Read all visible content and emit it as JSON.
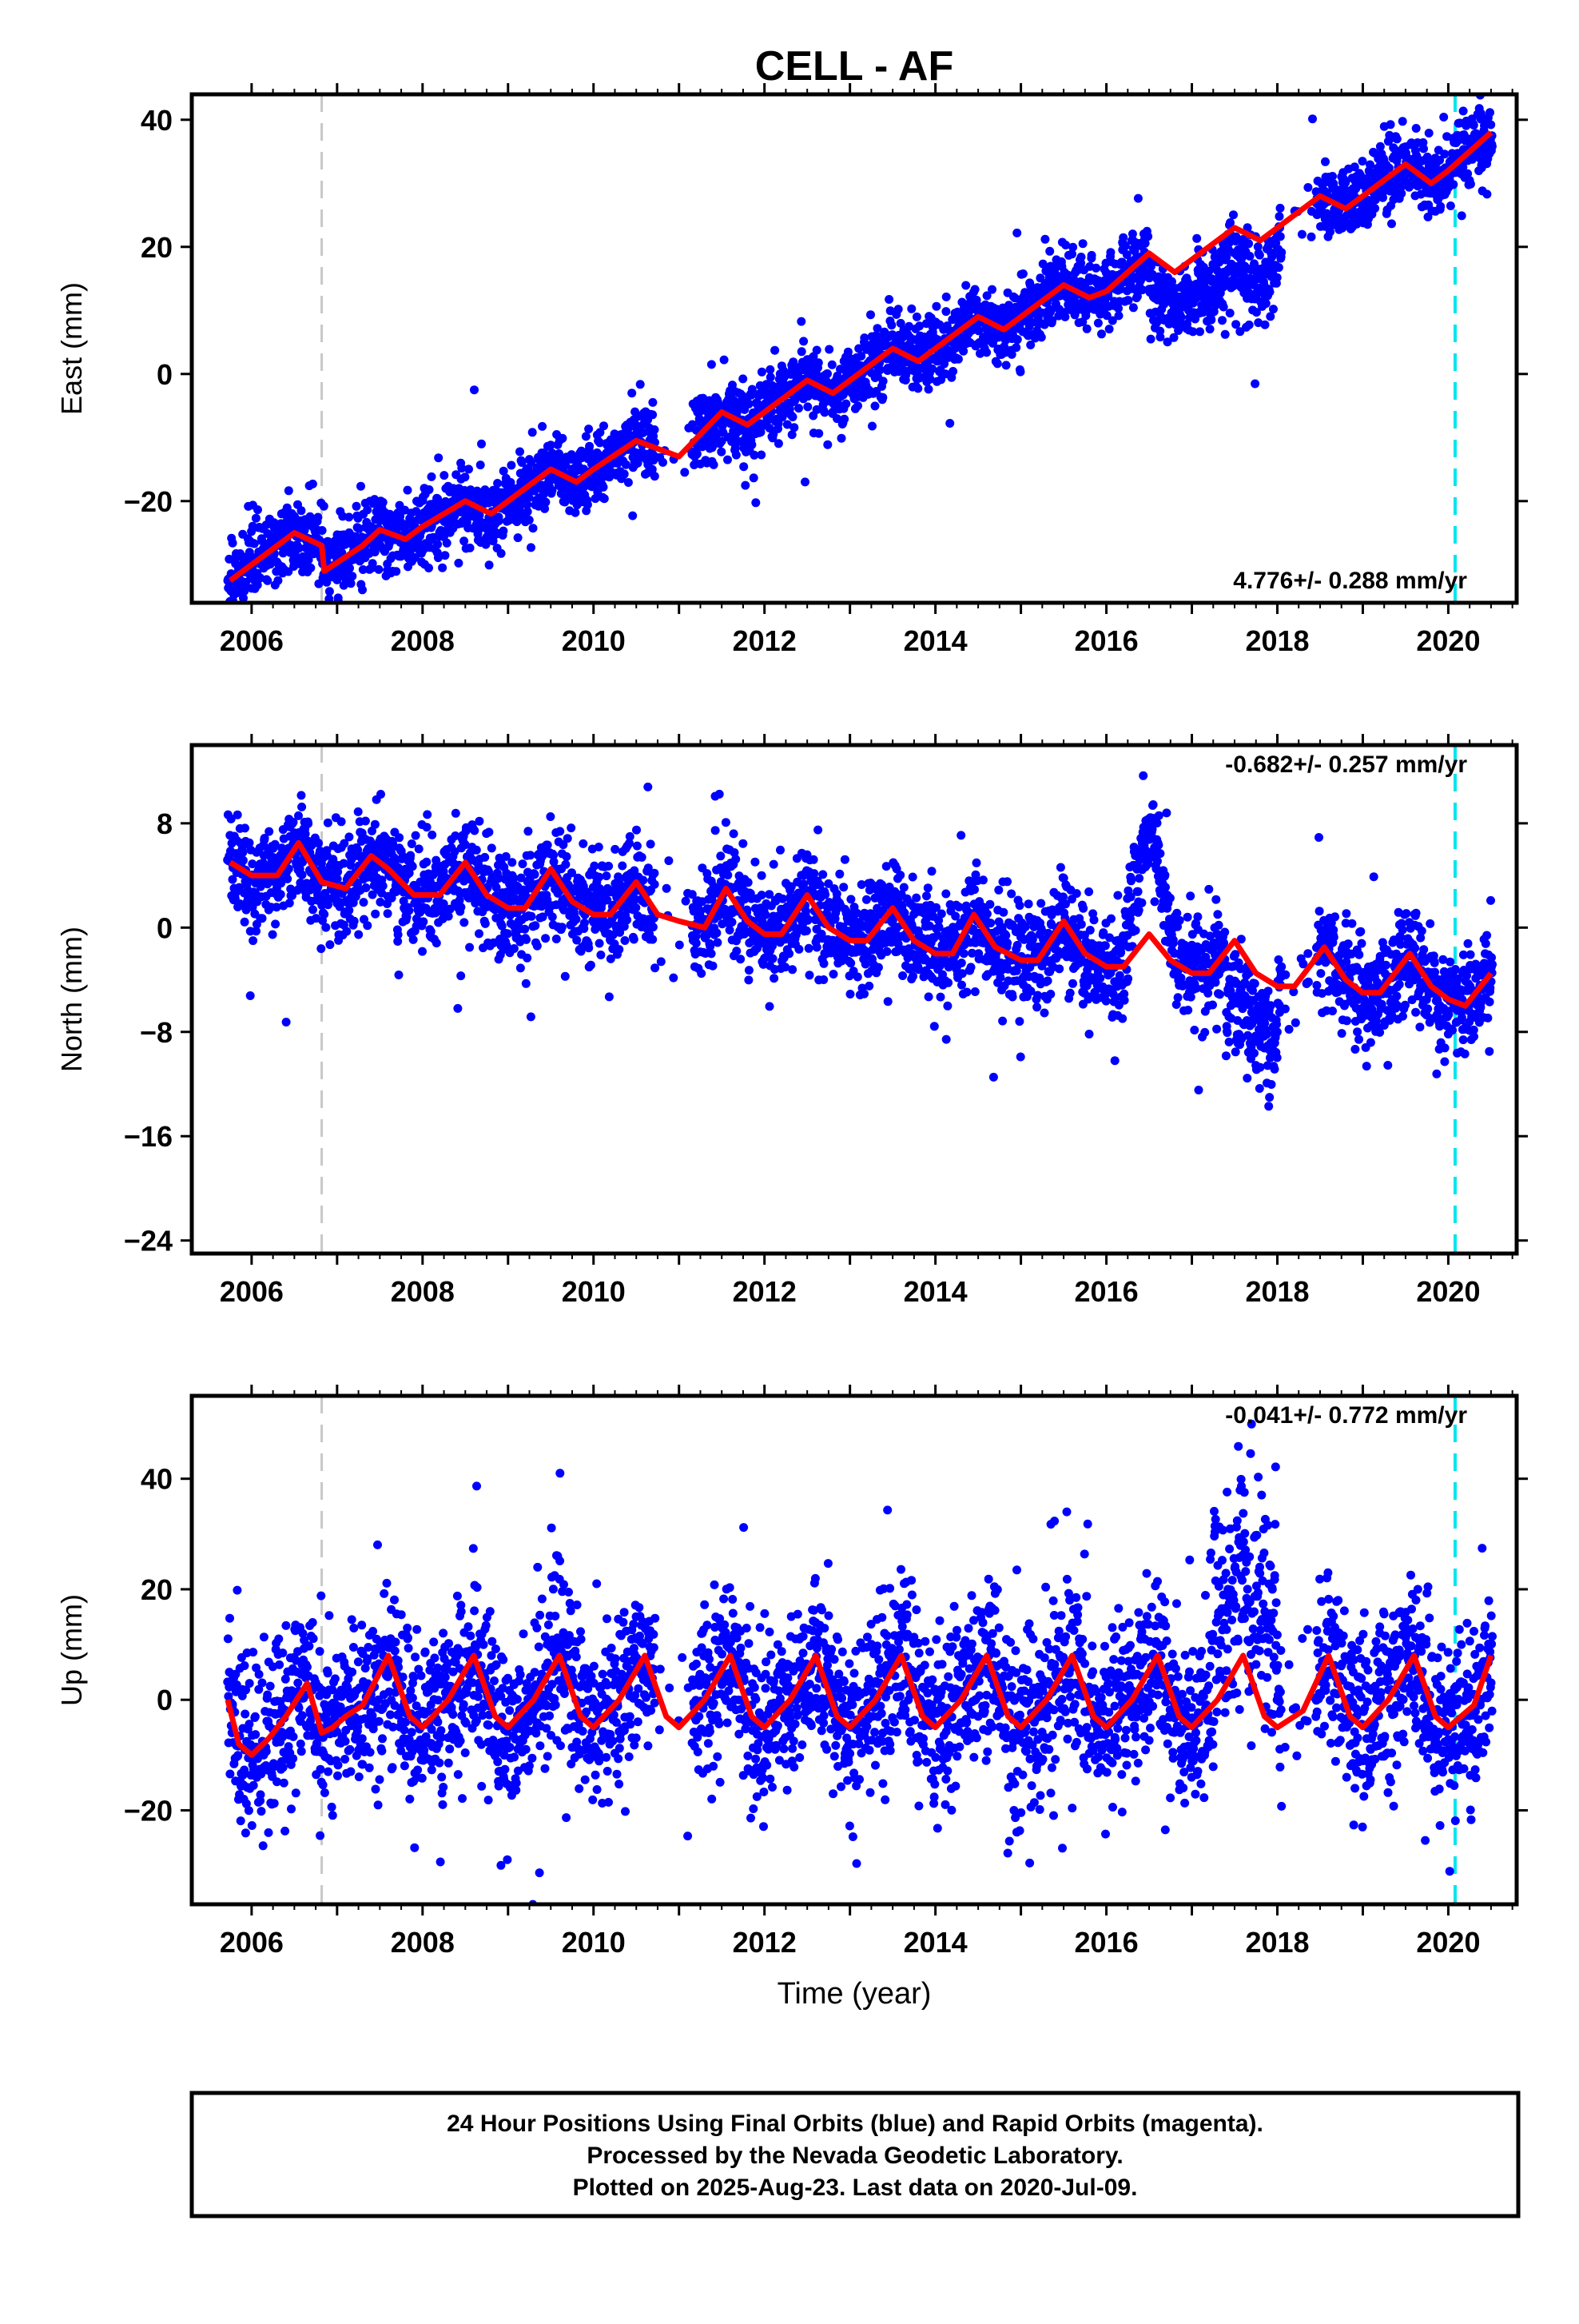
{
  "chart_title": "CELL - AF",
  "x_axis_label": "Time (year)",
  "footer": {
    "line1": "24 Hour Positions Using Final Orbits (blue) and Rapid Orbits (magenta).",
    "line2": "Processed by the Nevada Geodetic Laboratory.",
    "line3": "Plotted on 2025-Aug-23. Last data on 2020-Jul-09."
  },
  "colors": {
    "final_orbits": "#0000ff",
    "rapid_orbits": "#ff00ff",
    "model_fit": "#ff0000",
    "antenna_change": "#c8c8c8",
    "other_event": "#00e5ee"
  },
  "chart_data": [
    {
      "type": "scatter",
      "component": "East",
      "ylabel": "East (mm)",
      "rate_label": "4.776+/- 0.288 mm/yr",
      "xlim": [
        2005.3,
        2020.8
      ],
      "ylim": [
        -36,
        44
      ],
      "yticks": [
        -20,
        0,
        20,
        40
      ],
      "xticks": [
        2006,
        2008,
        2010,
        2012,
        2014,
        2016,
        2018,
        2020
      ],
      "grid": false,
      "vertical_lines": [
        {
          "x": 2006.82,
          "style": "dashed",
          "color": "gray"
        },
        {
          "x": 2020.08,
          "style": "dashed",
          "color": "cyan"
        }
      ],
      "data_range": [
        2005.72,
        2020.52
      ],
      "fit_line": {
        "x": [
          2005.75,
          2006.2,
          2006.5,
          2006.82,
          2006.85,
          2007.3,
          2007.5,
          2007.8,
          2008.0,
          2008.5,
          2008.8,
          2009.0,
          2009.5,
          2009.8,
          2010.0,
          2010.5,
          2011.0,
          2011.5,
          2011.8,
          2012.0,
          2012.5,
          2012.8,
          2013.0,
          2013.5,
          2013.8,
          2014.0,
          2014.5,
          2014.8,
          2015.0,
          2015.5,
          2015.8,
          2016.0,
          2016.5,
          2016.8,
          2017.0,
          2017.5,
          2017.8,
          2018.0,
          2018.5,
          2018.8,
          2019.0,
          2019.5,
          2019.8,
          2020.0,
          2020.5
        ],
        "y": [
          -32.5,
          -28,
          -25,
          -27,
          -31,
          -27,
          -24.5,
          -26,
          -24,
          -20,
          -22,
          -20,
          -15,
          -17,
          -15,
          -10.5,
          -13,
          -6,
          -8,
          -6,
          -1,
          -3,
          -1,
          4,
          2,
          4,
          9,
          7,
          9,
          14,
          12,
          13,
          19,
          16,
          18,
          23,
          21,
          23,
          28,
          26,
          28,
          33,
          30,
          32,
          38
        ]
      },
      "points": {
        "count": 3600,
        "trend_slope": 4.776,
        "trend_intercept_at_2006": -29,
        "scatter_sigma": 2.8
      }
    },
    {
      "type": "scatter",
      "component": "North",
      "ylabel": "North (mm)",
      "rate_label": "-0.682+/- 0.257 mm/yr",
      "xlim": [
        2005.3,
        2020.8
      ],
      "ylim": [
        -25,
        14
      ],
      "yticks": [
        -24,
        -16,
        -8,
        0,
        8
      ],
      "xticks": [
        2006,
        2008,
        2010,
        2012,
        2014,
        2016,
        2018,
        2020
      ],
      "grid": false,
      "vertical_lines": [
        {
          "x": 2006.82,
          "style": "dashed",
          "color": "gray"
        },
        {
          "x": 2020.08,
          "style": "dashed",
          "color": "cyan"
        }
      ],
      "data_range": [
        2005.72,
        2020.52
      ],
      "fit_line": {
        "x": [
          2005.75,
          2006.0,
          2006.3,
          2006.55,
          2006.82,
          2007.1,
          2007.4,
          2007.6,
          2007.9,
          2008.2,
          2008.5,
          2008.75,
          2009.0,
          2009.2,
          2009.5,
          2009.75,
          2010.0,
          2010.2,
          2010.5,
          2010.75,
          2011.0,
          2011.3,
          2011.55,
          2011.8,
          2012.0,
          2012.2,
          2012.5,
          2012.75,
          2013.0,
          2013.2,
          2013.5,
          2013.75,
          2014.0,
          2014.2,
          2014.45,
          2014.7,
          2015.0,
          2015.2,
          2015.5,
          2015.75,
          2016.0,
          2016.2,
          2016.5,
          2016.75,
          2017.0,
          2017.2,
          2017.5,
          2017.75,
          2018.0,
          2018.2,
          2018.55,
          2018.8,
          2019.0,
          2019.2,
          2019.55,
          2019.8,
          2020.0,
          2020.2,
          2020.5
        ],
        "y": [
          5,
          4,
          4,
          6.5,
          3.5,
          3,
          5.5,
          4.5,
          2.5,
          2.5,
          5,
          2.5,
          1.5,
          1.5,
          4.5,
          2,
          1,
          1,
          3.5,
          1,
          0.5,
          0,
          3,
          0.5,
          -0.5,
          -0.5,
          2.5,
          0,
          -1,
          -1,
          1.5,
          -1,
          -2,
          -2,
          1,
          -1.5,
          -2.5,
          -2.5,
          0.5,
          -2,
          -3,
          -3,
          -0.5,
          -2.5,
          -3.5,
          -3.5,
          -1,
          -3.5,
          -4.5,
          -4.5,
          -1.5,
          -4,
          -5,
          -5,
          -2,
          -4.5,
          -5.5,
          -6,
          -3.5
        ]
      },
      "points": {
        "count": 3600,
        "trend_slope": -0.682,
        "trend_intercept_at_2006": 4,
        "scatter_sigma": 1.9
      }
    },
    {
      "type": "scatter",
      "component": "Up",
      "ylabel": "Up (mm)",
      "rate_label": "-0.041+/- 0.772 mm/yr",
      "xlim": [
        2005.3,
        2020.8
      ],
      "ylim": [
        -37,
        55
      ],
      "yticks": [
        -20,
        0,
        20,
        40
      ],
      "xticks": [
        2006,
        2008,
        2010,
        2012,
        2014,
        2016,
        2018,
        2020
      ],
      "grid": false,
      "vertical_lines": [
        {
          "x": 2006.82,
          "style": "dashed",
          "color": "gray"
        },
        {
          "x": 2020.08,
          "style": "dashed",
          "color": "cyan"
        }
      ],
      "data_range": [
        2005.72,
        2020.52
      ],
      "fit_line": {
        "x": [
          2005.72,
          2005.85,
          2006.0,
          2006.2,
          2006.4,
          2006.65,
          2006.82,
          2006.95,
          2007.1,
          2007.3,
          2007.6,
          2007.85,
          2008.0,
          2008.3,
          2008.6,
          2008.85,
          2009.0,
          2009.3,
          2009.6,
          2009.85,
          2010.0,
          2010.3,
          2010.6,
          2010.85,
          2011.0,
          2011.3,
          2011.6,
          2011.85,
          2012.0,
          2012.3,
          2012.6,
          2012.85,
          2013.0,
          2013.3,
          2013.6,
          2013.85,
          2014.0,
          2014.3,
          2014.6,
          2014.85,
          2015.0,
          2015.3,
          2015.6,
          2015.85,
          2016.0,
          2016.3,
          2016.6,
          2016.85,
          2017.0,
          2017.3,
          2017.6,
          2017.85,
          2018.0,
          2018.3,
          2018.6,
          2018.85,
          2019.0,
          2019.3,
          2019.6,
          2019.85,
          2020.0,
          2020.3,
          2020.5
        ],
        "y": [
          0,
          -8,
          -10,
          -7,
          -3,
          3,
          -6,
          -5,
          -3,
          -1,
          8,
          -3,
          -5,
          0,
          8,
          -3,
          -5,
          0,
          8,
          -3,
          -5,
          0,
          8,
          -3,
          -5,
          0,
          8,
          -3,
          -5,
          0,
          8,
          -3,
          -5,
          0,
          8,
          -3,
          -5,
          0,
          8,
          -3,
          -5,
          0,
          8,
          -3,
          -5,
          0,
          8,
          -3,
          -5,
          0,
          8,
          -3,
          -5,
          -2,
          8,
          -3,
          -5,
          0,
          8,
          -3,
          -5,
          -1,
          8
        ]
      },
      "points": {
        "count": 3600,
        "trend_slope": -0.041,
        "trend_intercept_at_2006": 0,
        "scatter_sigma": 7.5
      }
    }
  ]
}
